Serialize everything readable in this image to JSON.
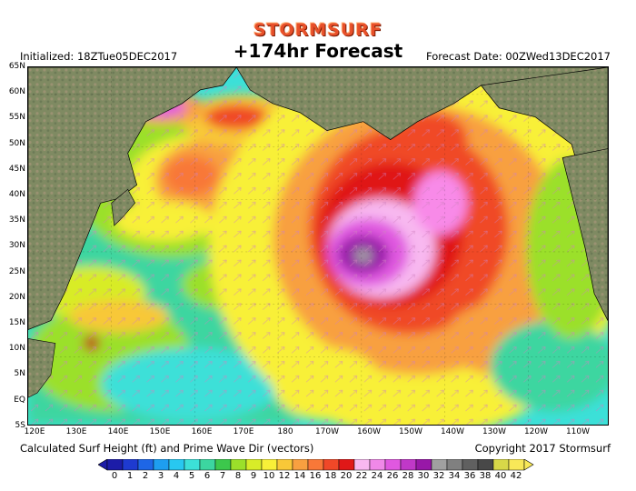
{
  "brand": "STORMSURF",
  "title": "+174hr Forecast",
  "initialized": "Initialized: 18ZTue05DEC2017",
  "forecast_date": "Forecast Date: 00ZWed13DEC2017",
  "caption": "Calculated Surf Height (ft) and Prime Wave Dir (vectors)",
  "copyright": "Copyright 2017 Stormsurf",
  "lat_labels": [
    "65N",
    "60N",
    "55N",
    "50N",
    "45N",
    "40N",
    "35N",
    "30N",
    "25N",
    "20N",
    "15N",
    "10N",
    "5N",
    "EQ",
    "5S"
  ],
  "lon_labels": [
    "120E",
    "130E",
    "140E",
    "150E",
    "160E",
    "170E",
    "180",
    "170W",
    "160W",
    "150W",
    "140W",
    "130W",
    "120W",
    "110W"
  ],
  "legend": {
    "values": [
      "0",
      "1",
      "2",
      "3",
      "4",
      "5",
      "6",
      "7",
      "8",
      "9",
      "10",
      "12",
      "14",
      "16",
      "18",
      "20",
      "22",
      "24",
      "26",
      "28",
      "30",
      "32",
      "34",
      "36",
      "38",
      "40",
      "42"
    ],
    "colors": [
      "#1c1ca8",
      "#1e3ad0",
      "#1e66e6",
      "#1e9ef0",
      "#28c8f0",
      "#3ce0d8",
      "#3cd6a0",
      "#3cc84c",
      "#9be02a",
      "#d8ec28",
      "#f8f038",
      "#f8c838",
      "#f8a040",
      "#f87838",
      "#f04828",
      "#e01818",
      "#f8b8f0",
      "#f088e8",
      "#e058e0",
      "#c038c8",
      "#9818a8",
      "#a0a0a0",
      "#808080",
      "#606060",
      "#484848",
      "#d8d848",
      "#f8e858"
    ]
  },
  "colors": {
    "ocean_base": "#3ce0d8",
    "land": "#8a8a6a",
    "brand": "#e8502a"
  }
}
